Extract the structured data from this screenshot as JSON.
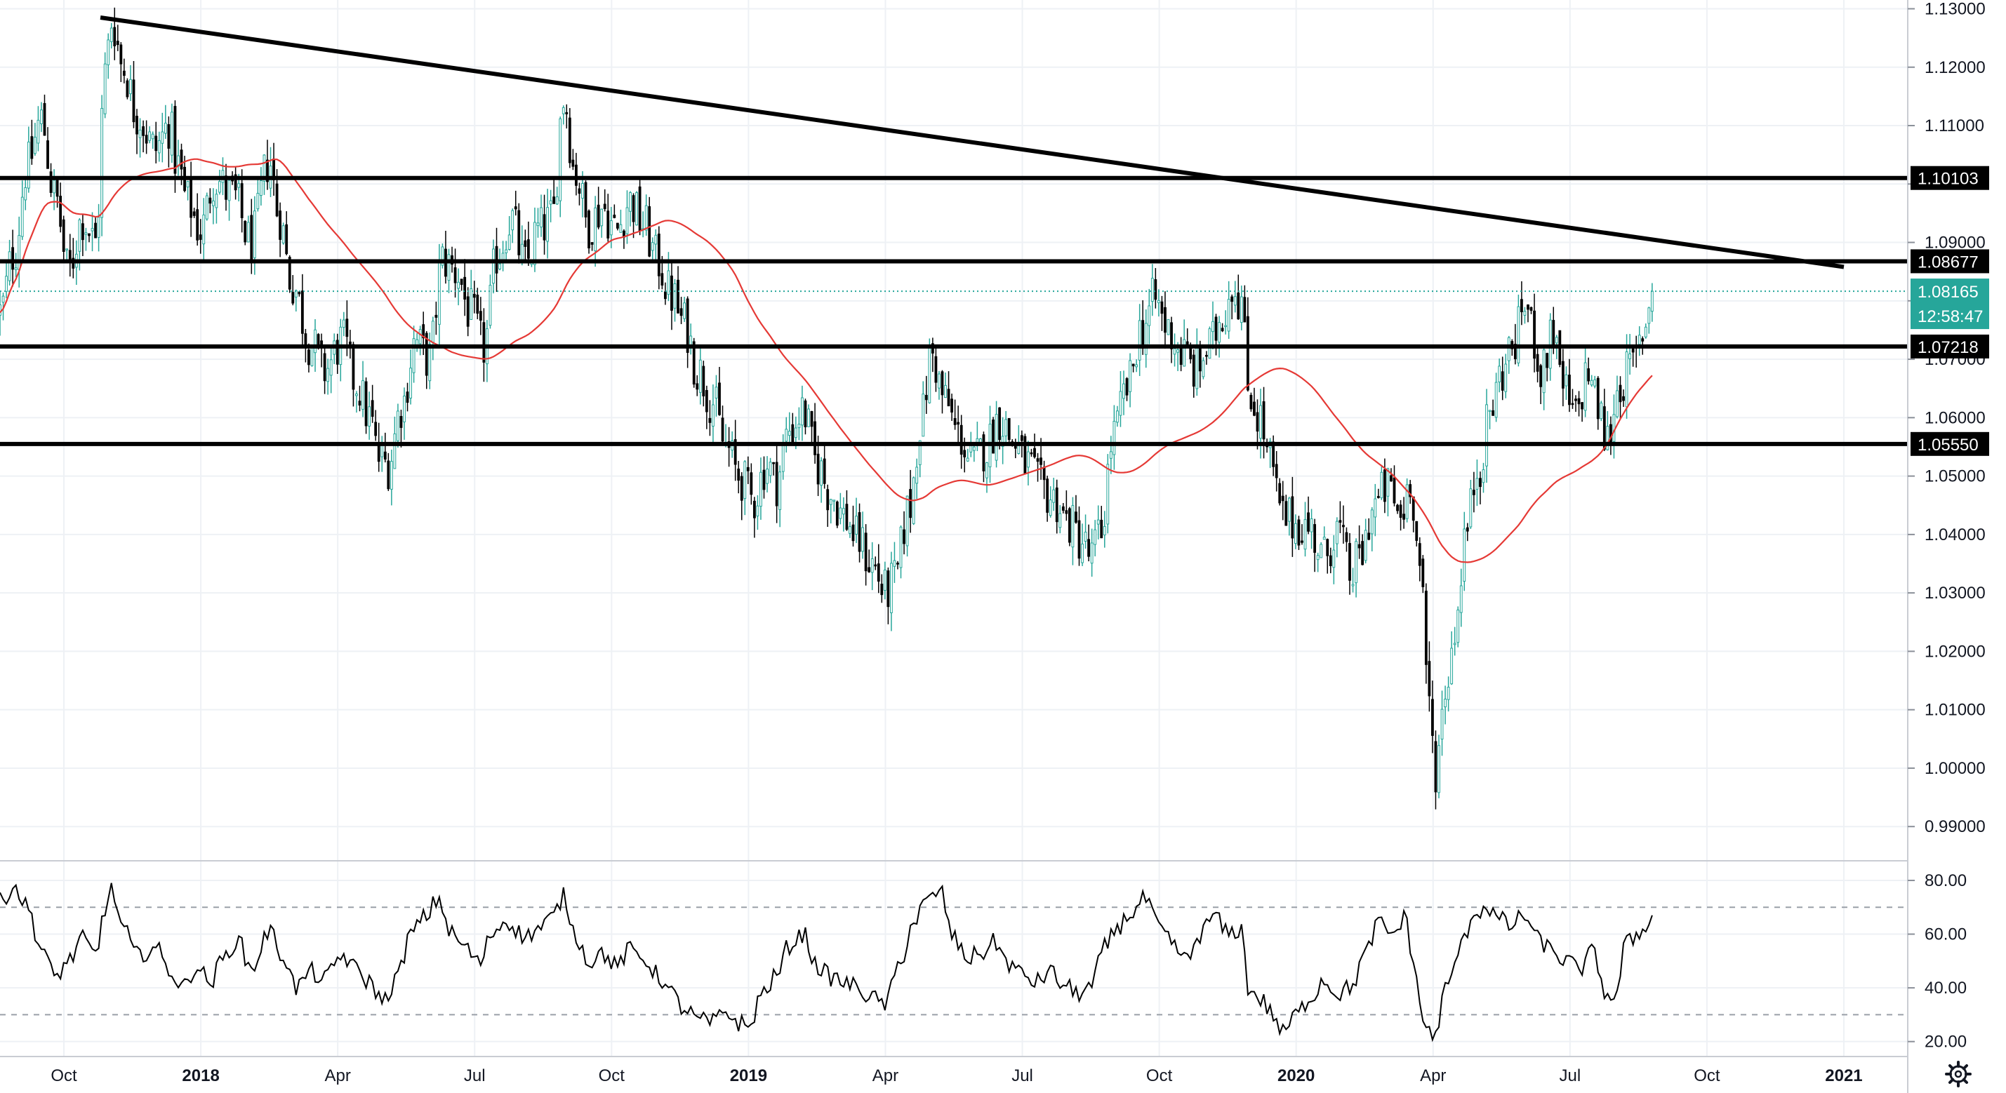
{
  "chart_data": {
    "type": "candlestick",
    "price_axis": {
      "range": [
        0.9845,
        1.1315
      ],
      "ticks": [
        "1.13000",
        "1.12000",
        "1.11000",
        "1.10000",
        "1.09000",
        "1.08000",
        "1.07000",
        "1.06000",
        "1.05000",
        "1.04000",
        "1.03000",
        "1.02000",
        "1.01000",
        "1.00000",
        "0.99000"
      ]
    },
    "rsi_axis": {
      "range": [
        16,
        86
      ],
      "ticks": [
        "80.00",
        "60.00",
        "40.00",
        "20.00"
      ],
      "bands": [
        70,
        30
      ]
    },
    "time_axis": {
      "ticks": [
        {
          "label": "Oct",
          "t": 0.5,
          "bold": false
        },
        {
          "label": "2018",
          "t": 3.5,
          "bold": true
        },
        {
          "label": "Apr",
          "t": 6.5,
          "bold": false
        },
        {
          "label": "Jul",
          "t": 9.5,
          "bold": false
        },
        {
          "label": "Oct",
          "t": 12.5,
          "bold": false
        },
        {
          "label": "2019",
          "t": 15.5,
          "bold": true
        },
        {
          "label": "Apr",
          "t": 18.5,
          "bold": false
        },
        {
          "label": "Jul",
          "t": 21.5,
          "bold": false
        },
        {
          "label": "Oct",
          "t": 24.5,
          "bold": false
        },
        {
          "label": "2020",
          "t": 27.5,
          "bold": true
        },
        {
          "label": "Apr",
          "t": 30.5,
          "bold": false
        },
        {
          "label": "Jul",
          "t": 33.5,
          "bold": false
        },
        {
          "label": "Oct",
          "t": 36.5,
          "bold": false
        },
        {
          "label": "2021",
          "t": 39.5,
          "bold": true
        }
      ],
      "range": [
        -0.9,
        40.9
      ]
    },
    "horizontal_levels": [
      {
        "value": 1.10103,
        "label": "1.10103"
      },
      {
        "value": 1.08677,
        "label": "1.08677"
      },
      {
        "value": 1.07218,
        "label": "1.07218"
      },
      {
        "value": 1.0555,
        "label": "1.05550"
      }
    ],
    "trendline": {
      "start": {
        "t": 1.3,
        "price": 1.1285
      },
      "end": {
        "t": 39.5,
        "price": 1.0858
      }
    },
    "last_price": {
      "value": 1.08165,
      "label": "1.08165",
      "countdown": "12:58:47",
      "color": "#26a69a"
    },
    "colors": {
      "up": "#26a69a",
      "down": "#000000",
      "ma": "#e53935",
      "rsi": "#000000",
      "level": "#000000"
    },
    "price_anchors": [
      [
        -0.9,
        1.078
      ],
      [
        -0.6,
        1.088
      ],
      [
        -0.3,
        1.103
      ],
      [
        0.0,
        1.111
      ],
      [
        0.3,
        1.098
      ],
      [
        0.6,
        1.085
      ],
      [
        0.9,
        1.094
      ],
      [
        1.2,
        1.09
      ],
      [
        1.4,
        1.119
      ],
      [
        1.55,
        1.128
      ],
      [
        1.8,
        1.12
      ],
      [
        2.1,
        1.112
      ],
      [
        2.5,
        1.106
      ],
      [
        2.8,
        1.11
      ],
      [
        3.0,
        1.103
      ],
      [
        3.2,
        1.097
      ],
      [
        3.5,
        1.092
      ],
      [
        3.8,
        1.101
      ],
      [
        4.2,
        1.098
      ],
      [
        4.6,
        1.09
      ],
      [
        5.0,
        1.104
      ],
      [
        5.2,
        1.095
      ],
      [
        5.5,
        1.083
      ],
      [
        5.9,
        1.073
      ],
      [
        6.2,
        1.068
      ],
      [
        6.6,
        1.073
      ],
      [
        6.9,
        1.066
      ],
      [
        7.2,
        1.06
      ],
      [
        7.4,
        1.053
      ],
      [
        7.6,
        1.052
      ],
      [
        7.9,
        1.062
      ],
      [
        8.2,
        1.073
      ],
      [
        8.5,
        1.07
      ],
      [
        8.8,
        1.087
      ],
      [
        9.1,
        1.085
      ],
      [
        9.4,
        1.078
      ],
      [
        9.7,
        1.072
      ],
      [
        10.0,
        1.088
      ],
      [
        10.3,
        1.094
      ],
      [
        10.6,
        1.086
      ],
      [
        10.9,
        1.092
      ],
      [
        11.2,
        1.094
      ],
      [
        11.45,
        1.115
      ],
      [
        11.7,
        1.102
      ],
      [
        12.0,
        1.093
      ],
      [
        12.3,
        1.096
      ],
      [
        12.6,
        1.092
      ],
      [
        12.9,
        1.097
      ],
      [
        13.2,
        1.093
      ],
      [
        13.5,
        1.087
      ],
      [
        13.8,
        1.081
      ],
      [
        14.1,
        1.076
      ],
      [
        14.4,
        1.068
      ],
      [
        14.7,
        1.063
      ],
      [
        15.0,
        1.055
      ],
      [
        15.3,
        1.05
      ],
      [
        15.6,
        1.046
      ],
      [
        15.9,
        1.052
      ],
      [
        16.1,
        1.049
      ],
      [
        16.4,
        1.058
      ],
      [
        16.7,
        1.061
      ],
      [
        17.0,
        1.052
      ],
      [
        17.3,
        1.047
      ],
      [
        17.6,
        1.043
      ],
      [
        17.9,
        1.039
      ],
      [
        18.2,
        1.035
      ],
      [
        18.5,
        1.03
      ],
      [
        18.7,
        1.032
      ],
      [
        19.0,
        1.044
      ],
      [
        19.3,
        1.06
      ],
      [
        19.5,
        1.071
      ],
      [
        19.8,
        1.063
      ],
      [
        20.1,
        1.057
      ],
      [
        20.4,
        1.052
      ],
      [
        20.7,
        1.055
      ],
      [
        21.0,
        1.06
      ],
      [
        21.3,
        1.056
      ],
      [
        21.6,
        1.052
      ],
      [
        21.9,
        1.048
      ],
      [
        22.2,
        1.046
      ],
      [
        22.5,
        1.042
      ],
      [
        22.8,
        1.039
      ],
      [
        23.0,
        1.036
      ],
      [
        23.2,
        1.04
      ],
      [
        23.5,
        1.057
      ],
      [
        23.8,
        1.065
      ],
      [
        24.1,
        1.075
      ],
      [
        24.4,
        1.08
      ],
      [
        24.7,
        1.075
      ],
      [
        25.0,
        1.071
      ],
      [
        25.3,
        1.068
      ],
      [
        25.6,
        1.072
      ],
      [
        25.9,
        1.078
      ],
      [
        26.1,
        1.083
      ],
      [
        26.3,
        1.08
      ],
      [
        26.45,
        1.065
      ],
      [
        26.7,
        1.06
      ],
      [
        26.9,
        1.053
      ],
      [
        27.2,
        1.043
      ],
      [
        27.5,
        1.042
      ],
      [
        27.8,
        1.041
      ],
      [
        28.1,
        1.036
      ],
      [
        28.4,
        1.041
      ],
      [
        28.7,
        1.033
      ],
      [
        28.9,
        1.036
      ],
      [
        29.2,
        1.045
      ],
      [
        29.5,
        1.048
      ],
      [
        29.8,
        1.043
      ],
      [
        30.0,
        1.05
      ],
      [
        30.2,
        1.035
      ],
      [
        30.4,
        1.012
      ],
      [
        30.55,
        1.0
      ],
      [
        30.8,
        1.015
      ],
      [
        31.0,
        1.025
      ],
      [
        31.2,
        1.04
      ],
      [
        31.5,
        1.052
      ],
      [
        31.8,
        1.062
      ],
      [
        32.0,
        1.068
      ],
      [
        32.3,
        1.073
      ],
      [
        32.5,
        1.08
      ],
      [
        32.7,
        1.074
      ],
      [
        32.9,
        1.067
      ],
      [
        33.1,
        1.076
      ],
      [
        33.3,
        1.066
      ],
      [
        33.6,
        1.06
      ],
      [
        33.9,
        1.068
      ],
      [
        34.1,
        1.062
      ],
      [
        34.3,
        1.056
      ],
      [
        34.6,
        1.066
      ],
      [
        34.9,
        1.069
      ],
      [
        35.1,
        1.075
      ],
      [
        35.3,
        1.08165
      ]
    ],
    "rsi_anchors": [
      [
        -0.9,
        72
      ],
      [
        -0.6,
        78
      ],
      [
        -0.3,
        70
      ],
      [
        0.0,
        55
      ],
      [
        0.3,
        44
      ],
      [
        0.6,
        50
      ],
      [
        0.9,
        58
      ],
      [
        1.2,
        52
      ],
      [
        1.4,
        70
      ],
      [
        1.55,
        76
      ],
      [
        1.8,
        62
      ],
      [
        2.1,
        52
      ],
      [
        2.5,
        55
      ],
      [
        2.8,
        47
      ],
      [
        3.1,
        40
      ],
      [
        3.4,
        48
      ],
      [
        3.7,
        42
      ],
      [
        4.0,
        51
      ],
      [
        4.3,
        58
      ],
      [
        4.6,
        47
      ],
      [
        5.0,
        61
      ],
      [
        5.3,
        52
      ],
      [
        5.6,
        40
      ],
      [
        5.9,
        46
      ],
      [
        6.2,
        43
      ],
      [
        6.6,
        52
      ],
      [
        6.9,
        47
      ],
      [
        7.2,
        42
      ],
      [
        7.5,
        35
      ],
      [
        7.8,
        44
      ],
      [
        8.1,
        60
      ],
      [
        8.4,
        66
      ],
      [
        8.7,
        73
      ],
      [
        9.0,
        60
      ],
      [
        9.3,
        55
      ],
      [
        9.6,
        49
      ],
      [
        9.9,
        61
      ],
      [
        10.2,
        65
      ],
      [
        10.6,
        59
      ],
      [
        10.9,
        62
      ],
      [
        11.2,
        66
      ],
      [
        11.45,
        74
      ],
      [
        11.7,
        60
      ],
      [
        12.0,
        50
      ],
      [
        12.3,
        53
      ],
      [
        12.6,
        48
      ],
      [
        12.9,
        54
      ],
      [
        13.2,
        51
      ],
      [
        13.5,
        45
      ],
      [
        13.8,
        38
      ],
      [
        14.1,
        32
      ],
      [
        14.4,
        28
      ],
      [
        14.7,
        27
      ],
      [
        15.0,
        31
      ],
      [
        15.3,
        27
      ],
      [
        15.5,
        25
      ],
      [
        15.8,
        38
      ],
      [
        16.1,
        44
      ],
      [
        16.4,
        56
      ],
      [
        16.7,
        60
      ],
      [
        17.0,
        48
      ],
      [
        17.3,
        44
      ],
      [
        17.6,
        42
      ],
      [
        17.9,
        40
      ],
      [
        18.2,
        36
      ],
      [
        18.5,
        34
      ],
      [
        18.8,
        48
      ],
      [
        19.1,
        64
      ],
      [
        19.4,
        72
      ],
      [
        19.7,
        76
      ],
      [
        20.0,
        58
      ],
      [
        20.3,
        51
      ],
      [
        20.6,
        53
      ],
      [
        20.9,
        57
      ],
      [
        21.2,
        49
      ],
      [
        21.5,
        45
      ],
      [
        21.8,
        42
      ],
      [
        22.1,
        46
      ],
      [
        22.4,
        41
      ],
      [
        22.7,
        38
      ],
      [
        23.0,
        40
      ],
      [
        23.3,
        55
      ],
      [
        23.6,
        63
      ],
      [
        23.9,
        68
      ],
      [
        24.2,
        73
      ],
      [
        24.5,
        62
      ],
      [
        24.8,
        56
      ],
      [
        25.1,
        50
      ],
      [
        25.4,
        60
      ],
      [
        25.7,
        67
      ],
      [
        26.0,
        60
      ],
      [
        26.3,
        62
      ],
      [
        26.45,
        40
      ],
      [
        26.7,
        36
      ],
      [
        27.0,
        30
      ],
      [
        27.2,
        23
      ],
      [
        27.5,
        30
      ],
      [
        27.8,
        36
      ],
      [
        28.1,
        43
      ],
      [
        28.4,
        38
      ],
      [
        28.7,
        40
      ],
      [
        29.0,
        52
      ],
      [
        29.3,
        64
      ],
      [
        29.6,
        60
      ],
      [
        29.9,
        66
      ],
      [
        30.1,
        46
      ],
      [
        30.3,
        27
      ],
      [
        30.5,
        21
      ],
      [
        30.8,
        40
      ],
      [
        31.1,
        55
      ],
      [
        31.4,
        68
      ],
      [
        31.7,
        70
      ],
      [
        31.9,
        66
      ],
      [
        32.2,
        63
      ],
      [
        32.5,
        67
      ],
      [
        32.8,
        58
      ],
      [
        33.1,
        54
      ],
      [
        33.4,
        50
      ],
      [
        33.7,
        47
      ],
      [
        34.0,
        53
      ],
      [
        34.3,
        38
      ],
      [
        34.5,
        35
      ],
      [
        34.7,
        56
      ],
      [
        35.0,
        60
      ],
      [
        35.3,
        67
      ]
    ]
  },
  "settings_icon": "gear-icon"
}
